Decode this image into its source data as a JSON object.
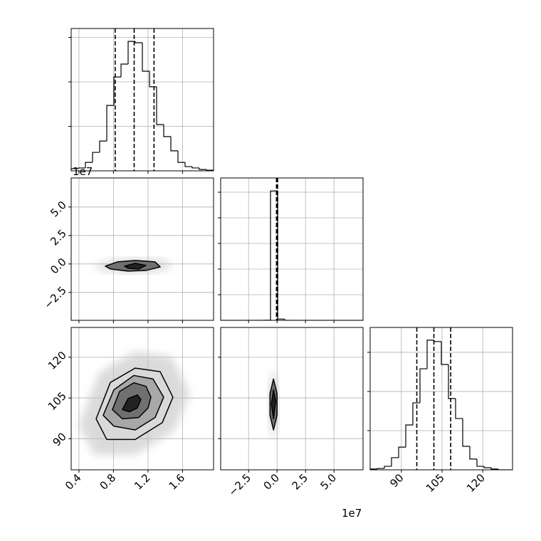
{
  "chart_data": {
    "type": "corner",
    "grid": true,
    "params": [
      {
        "lim": [
          0.31,
          1.96
        ],
        "ticks": [
          0.4,
          0.8,
          1.2,
          1.6
        ],
        "quantiles": [
          0.82,
          1.04,
          1.27
        ]
      },
      {
        "lim": [
          -4.95,
          7.55
        ],
        "ticks": [
          {
            "value": -2.5,
            "label": "−2.5"
          },
          {
            "value": 0,
            "label": "0.0"
          },
          2.5,
          {
            "value": 5,
            "label": "5.0"
          }
        ],
        "quantiles": [
          -0.05,
          0.0,
          0.05
        ],
        "offset_label": "1e7"
      },
      {
        "lim": [
          78.5,
          131
        ],
        "ticks": [
          90,
          105,
          120
        ],
        "quantiles": [
          95.7,
          102.0,
          108.2
        ]
      }
    ],
    "histograms": [
      {
        "param": 0,
        "ylim": [
          0,
          640
        ],
        "yticks": [
          200,
          400,
          600
        ],
        "bins": [
          0.31,
          0.3925,
          0.475,
          0.5575,
          0.64,
          0.7225,
          0.805,
          0.8875,
          0.97,
          1.0525,
          1.135,
          1.2175,
          1.3,
          1.3825,
          1.465,
          1.5475,
          1.63,
          1.7125,
          1.795,
          1.8775,
          1.96
        ],
        "counts": [
          10,
          13,
          38,
          83,
          134,
          294,
          422,
          480,
          582,
          576,
          448,
          378,
          208,
          154,
          90,
          38,
          19,
          13,
          6,
          3
        ]
      },
      {
        "param": 1,
        "ylim": [
          0,
          5556
        ],
        "yticks": [
          1000,
          2000,
          3000,
          4000,
          5000
        ],
        "bins": [
          -4.95,
          -4.325,
          -3.7,
          -3.075,
          -2.45,
          -1.825,
          -1.2,
          -0.575,
          0.05,
          0.675,
          1.3,
          1.925,
          2.55,
          3.175,
          3.8,
          4.425,
          5.05,
          5.675,
          6.3,
          6.925,
          7.55
        ],
        "counts": [
          0,
          0,
          0,
          0,
          0,
          0,
          5,
          5050,
          50,
          0,
          0,
          0,
          0,
          0,
          0,
          0,
          0,
          0,
          0,
          0
        ]
      },
      {
        "param": 2,
        "ylim": [
          0,
          727
        ],
        "yticks": [
          200,
          400,
          600
        ],
        "bins": [
          78.5,
          81.125,
          83.75,
          86.375,
          89,
          91.625,
          94.25,
          96.875,
          99.5,
          102.125,
          104.75,
          107.375,
          110,
          112.625,
          115.25,
          117.875,
          120.5,
          123.125,
          125.75,
          128.375,
          131
        ],
        "counts": [
          4,
          7,
          18,
          62,
          116,
          229,
          342,
          516,
          662,
          655,
          538,
          364,
          262,
          120,
          55,
          18,
          11,
          4,
          0,
          0
        ]
      }
    ],
    "contours": [
      {
        "x_param": 0,
        "y_param": 1,
        "levels": [
          {
            "x": [
              0.706,
              0.846,
              1.052,
              1.283,
              1.341,
              1.176,
              0.97,
              0.764
            ],
            "y": [
              -0.19,
              0.18,
              0.31,
              0.18,
              -0.26,
              -0.57,
              -0.63,
              -0.44
            ]
          },
          {
            "x": [
              0.929,
              1.052,
              1.176,
              1.093,
              0.97
            ],
            "y": [
              -0.19,
              0.06,
              -0.13,
              -0.44,
              -0.38
            ]
          }
        ]
      },
      {
        "x_param": 0,
        "y_param": 2,
        "levels": [
          {
            "x": [
              1.489,
              1.341,
              1.052,
              0.764,
              0.599,
              0.722,
              1.052,
              1.366
            ],
            "y": [
              105.3,
              114.7,
              116.0,
              110.7,
              97.3,
              89.7,
              89.7,
              95.9
            ]
          },
          {
            "x": [
              1.382,
              1.258,
              1.036,
              0.805,
              0.681,
              0.805,
              1.052,
              1.283
            ],
            "y": [
              105.3,
              112.0,
              113.3,
              108.0,
              98.6,
              94.6,
              93.2,
              97.8
            ]
          },
          {
            "x": [
              1.234,
              1.176,
              1.036,
              0.871,
              0.788,
              0.904,
              1.093,
              1.201
            ],
            "y": [
              105.3,
              109.3,
              110.6,
              107.4,
              100.7,
              97.3,
              97.8,
              101.3
            ]
          },
          {
            "x": [
              1.118,
              1.077,
              0.97,
              0.904,
              0.986,
              1.077
            ],
            "y": [
              104.5,
              106.1,
              104.8,
              100.7,
              99.9,
              101.3
            ]
          }
        ]
      },
      {
        "x_param": 1,
        "y_param": 2,
        "levels": [
          {
            "x": [
              -0.31,
              0.0,
              0.0,
              -0.31,
              -0.62,
              -0.62
            ],
            "y": [
              112.0,
              106.6,
              98.6,
              93.2,
              98.6,
              106.6
            ]
          },
          {
            "x": [
              -0.31,
              -0.12,
              -0.31,
              -0.5
            ],
            "y": [
              108.0,
              104.0,
              97.3,
              102.7
            ]
          }
        ]
      }
    ]
  }
}
